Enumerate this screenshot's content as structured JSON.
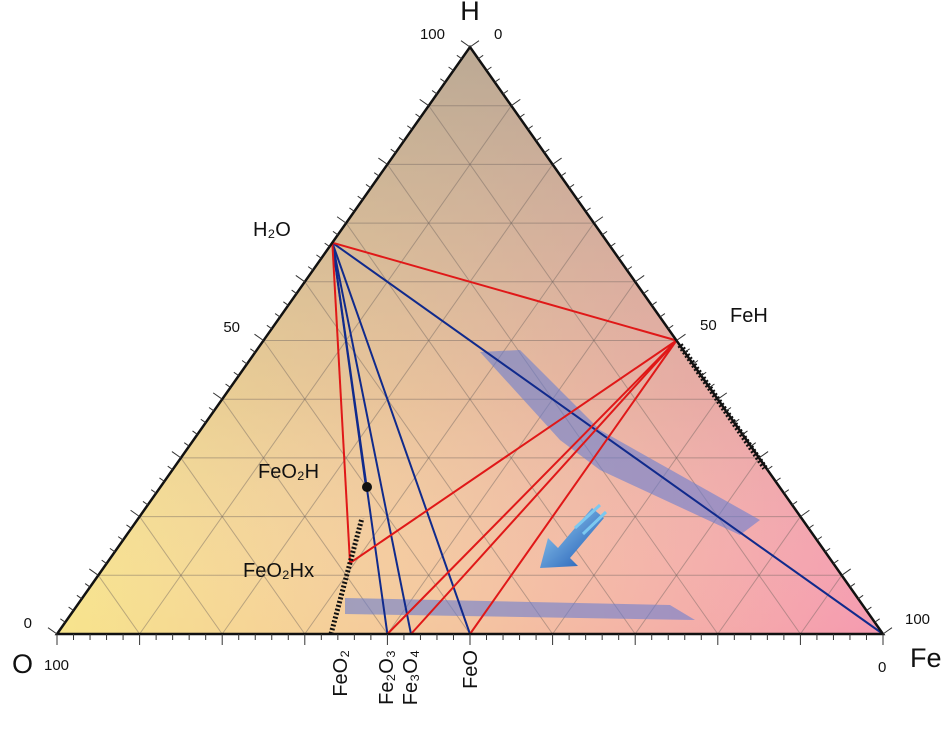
{
  "vertices": {
    "h": "H",
    "o": "O",
    "fe": "Fe"
  },
  "tick_labels": {
    "h_left": 100,
    "h_right": 0,
    "left_mid": 50,
    "right_mid": 50,
    "o_top": 0,
    "o_bottom": 100,
    "fe_top": 100,
    "fe_bottom": 0
  },
  "compounds": {
    "h2o": "H₂O",
    "feh": "FeH",
    "feo2h": "FeO₂H",
    "feo2hx": "FeO₂Hx",
    "feo2": "FeO₂",
    "fe2o3": "Fe₂O₃",
    "fe3o4": "Fe₃O₄",
    "feo": "FeO"
  }
}
